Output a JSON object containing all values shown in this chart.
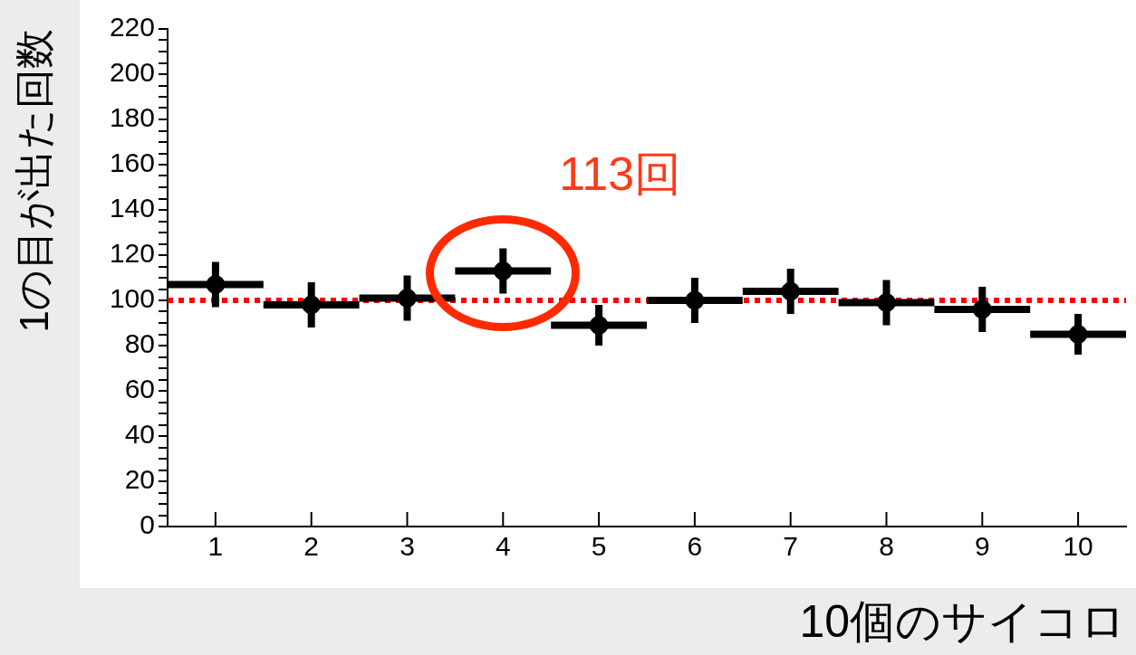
{
  "chart_data": {
    "type": "scatter",
    "xlabel": "10個のサイコロ",
    "ylabel": "1の目が出た回数",
    "x": [
      1,
      2,
      3,
      4,
      5,
      6,
      7,
      8,
      9,
      10
    ],
    "values": [
      107,
      98,
      101,
      113,
      89,
      100,
      104,
      99,
      96,
      85
    ],
    "errors": [
      10,
      10,
      10,
      10,
      9,
      10,
      10,
      10,
      10,
      9
    ],
    "xerrors": [
      0.5,
      0.5,
      0.5,
      0.5,
      0.5,
      0.5,
      0.5,
      0.5,
      0.5,
      0.5
    ],
    "color": "#000000",
    "marker": "circle",
    "xlim": [
      0.5,
      10.5
    ],
    "xticks": [
      1,
      2,
      3,
      4,
      5,
      6,
      7,
      8,
      9,
      10
    ],
    "ylim": [
      0,
      220
    ],
    "yticks": [
      0,
      {
        "value": 5,
        "label": null
      },
      {
        "value": 10,
        "label": null
      },
      {
        "value": 15,
        "label": null
      },
      20,
      {
        "value": 25,
        "label": null
      },
      {
        "value": 30,
        "label": null
      },
      {
        "value": 35,
        "label": null
      },
      40,
      {
        "value": 45,
        "label": null
      },
      {
        "value": 50,
        "label": null
      },
      {
        "value": 55,
        "label": null
      },
      60,
      {
        "value": 65,
        "label": null
      },
      {
        "value": 70,
        "label": null
      },
      {
        "value": 75,
        "label": null
      },
      80,
      {
        "value": 85,
        "label": null
      },
      {
        "value": 90,
        "label": null
      },
      {
        "value": 95,
        "label": null
      },
      100,
      {
        "value": 105,
        "label": null
      },
      {
        "value": 110,
        "label": null
      },
      {
        "value": 115,
        "label": null
      },
      120,
      {
        "value": 125,
        "label": null
      },
      {
        "value": 130,
        "label": null
      },
      {
        "value": 135,
        "label": null
      },
      140,
      {
        "value": 145,
        "label": null
      },
      {
        "value": 150,
        "label": null
      },
      {
        "value": 155,
        "label": null
      },
      160,
      {
        "value": 165,
        "label": null
      },
      {
        "value": 170,
        "label": null
      },
      {
        "value": 175,
        "label": null
      },
      180,
      {
        "value": 185,
        "label": null
      },
      {
        "value": 190,
        "label": null
      },
      {
        "value": 195,
        "label": null
      },
      200,
      {
        "value": 205,
        "label": null
      },
      {
        "value": 210,
        "label": null
      },
      {
        "value": 215,
        "label": null
      },
      220
    ],
    "ref_lines": [
      {
        "axis": "y",
        "value": 100,
        "color": "#ff0000",
        "line_style": "dotted"
      }
    ],
    "annotations": [
      {
        "text": "113回",
        "x": 4,
        "y": 113
      }
    ],
    "grid": false,
    "legend": false
  }
}
